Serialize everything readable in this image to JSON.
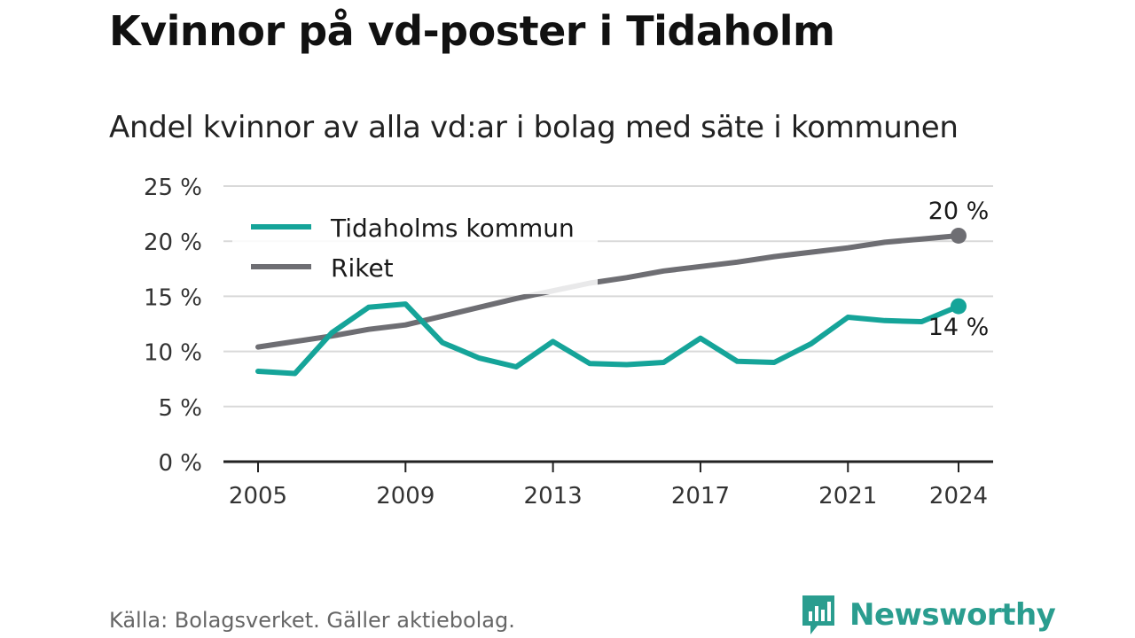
{
  "title": "Kvinnor på vd-poster i Tidaholm",
  "subtitle": "Andel kvinnor av alla vd:ar i bolag med säte i kommunen",
  "source": "Källa: Bolagsverket. Gäller aktiebolag.",
  "brand": "Newsworthy",
  "colors": {
    "kommun": "#15a499",
    "riket": "#6e6e73",
    "axis": "#222222",
    "grid": "#d9d9d9"
  },
  "chart_data": {
    "type": "line",
    "x": [
      2005,
      2006,
      2007,
      2008,
      2009,
      2010,
      2011,
      2012,
      2013,
      2014,
      2015,
      2016,
      2017,
      2018,
      2019,
      2020,
      2021,
      2022,
      2023,
      2024
    ],
    "xticks": [
      "2005",
      "2009",
      "2013",
      "2017",
      "2021",
      "2024"
    ],
    "yticks": [
      "0 %",
      "5 %",
      "10 %",
      "15 %",
      "20 %",
      "25 %"
    ],
    "ylim": [
      0,
      25
    ],
    "grid": true,
    "legend": "top-left",
    "series": [
      {
        "name": "Tidaholms kommun",
        "values": [
          8.2,
          8.0,
          11.7,
          14.0,
          14.3,
          10.8,
          9.4,
          8.6,
          10.9,
          8.9,
          8.8,
          9.0,
          11.2,
          9.1,
          9.0,
          10.7,
          13.1,
          12.8,
          12.7,
          14.1
        ],
        "end_label": "14 %"
      },
      {
        "name": "Riket",
        "values": [
          10.4,
          10.9,
          11.4,
          12.0,
          12.4,
          13.2,
          14.0,
          14.8,
          15.5,
          16.2,
          16.7,
          17.3,
          17.7,
          18.1,
          18.6,
          19.0,
          19.4,
          19.9,
          20.2,
          20.5
        ],
        "end_label": "20 %"
      }
    ]
  }
}
